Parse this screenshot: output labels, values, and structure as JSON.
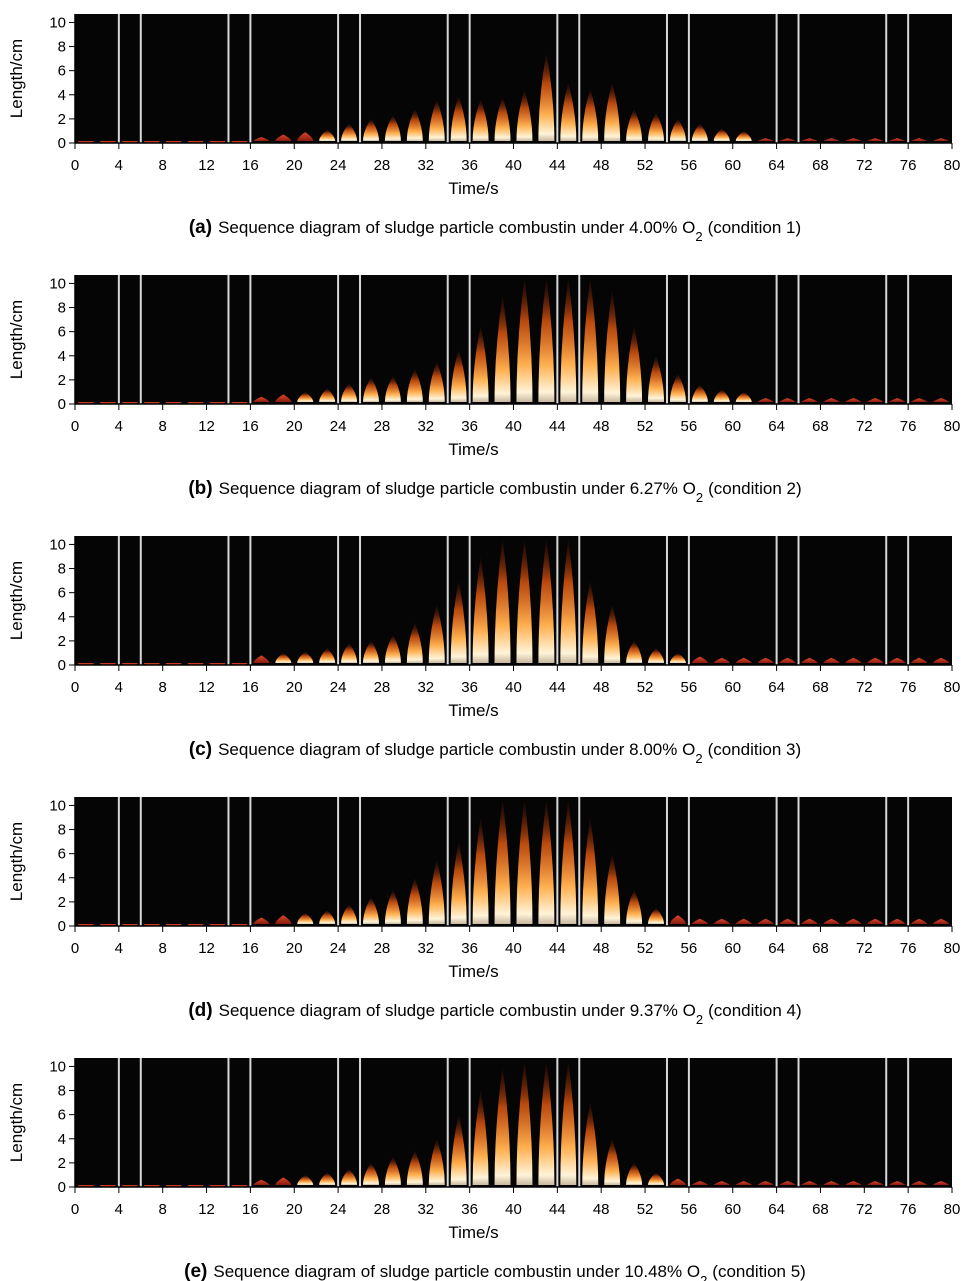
{
  "chart_data": [
    {
      "type": "flame-sequence",
      "label": "(a)",
      "caption": "Sequence diagram of sludge particle combustin under 4.00% O",
      "caption_subscript": "2",
      "caption_suffix": "(condition 1)",
      "xlabel": "Time/s",
      "ylabel": "Length/cm",
      "xlim": [
        0,
        80
      ],
      "ylim": [
        0,
        10.7
      ],
      "xticks": [
        0,
        4,
        8,
        12,
        16,
        20,
        24,
        28,
        32,
        36,
        40,
        44,
        48,
        52,
        56,
        60,
        64,
        68,
        72,
        76,
        80
      ],
      "yticks": [
        0,
        2,
        4,
        6,
        8,
        10
      ],
      "separators": [
        4,
        6,
        14,
        16,
        24,
        26,
        34,
        36,
        44,
        46,
        54,
        56,
        64,
        66,
        74,
        76
      ],
      "x": [
        1,
        3,
        5,
        7,
        9,
        11,
        13,
        15,
        17,
        19,
        21,
        23,
        25,
        27,
        29,
        31,
        33,
        35,
        37,
        39,
        41,
        43,
        45,
        47,
        49,
        51,
        53,
        55,
        57,
        59,
        61,
        63,
        65,
        67,
        69,
        71,
        73,
        75,
        77,
        79
      ],
      "values": [
        0,
        0,
        0,
        0,
        0,
        0,
        0,
        0,
        0.5,
        0.7,
        0.9,
        1.1,
        1.6,
        2.0,
        2.3,
        2.8,
        3.6,
        3.9,
        3.6,
        3.8,
        4.4,
        7.5,
        5.0,
        4.5,
        5.0,
        2.8,
        2.5,
        2.0,
        1.6,
        1.2,
        1.0,
        0.4,
        0.4,
        0.4,
        0.4,
        0.4,
        0.4,
        0.4,
        0.4,
        0.4
      ]
    },
    {
      "type": "flame-sequence",
      "label": "(b)",
      "caption": "Sequence diagram of sludge particle combustin under 6.27% O",
      "caption_subscript": "2",
      "caption_suffix": "(condition 2)",
      "xlabel": "Time/s",
      "ylabel": "Length/cm",
      "xlim": [
        0,
        80
      ],
      "ylim": [
        0,
        10.7
      ],
      "xticks": [
        0,
        4,
        8,
        12,
        16,
        20,
        24,
        28,
        32,
        36,
        40,
        44,
        48,
        52,
        56,
        60,
        64,
        68,
        72,
        76,
        80
      ],
      "yticks": [
        0,
        2,
        4,
        6,
        8,
        10
      ],
      "separators": [
        4,
        6,
        14,
        16,
        24,
        26,
        34,
        36,
        44,
        46,
        54,
        56,
        64,
        66,
        74,
        76
      ],
      "x": [
        1,
        3,
        5,
        7,
        9,
        11,
        13,
        15,
        17,
        19,
        21,
        23,
        25,
        27,
        29,
        31,
        33,
        35,
        37,
        39,
        41,
        43,
        45,
        47,
        49,
        51,
        53,
        55,
        57,
        59,
        61,
        63,
        65,
        67,
        69,
        71,
        73,
        75,
        77,
        79
      ],
      "values": [
        0,
        0,
        0,
        0,
        0,
        0,
        0,
        0,
        0.6,
        0.8,
        1.0,
        1.3,
        1.7,
        2.2,
        2.3,
        2.9,
        3.5,
        4.5,
        6.5,
        9.0,
        10.5,
        10.5,
        10.5,
        10.5,
        9.5,
        6.5,
        4.0,
        2.5,
        1.6,
        1.2,
        1.0,
        0.5,
        0.5,
        0.5,
        0.5,
        0.5,
        0.5,
        0.5,
        0.5,
        0.5
      ]
    },
    {
      "type": "flame-sequence",
      "label": "(c)",
      "caption": "Sequence diagram of sludge particle combustin under 8.00% O",
      "caption_subscript": "2",
      "caption_suffix": "(condition 3)",
      "xlabel": "Time/s",
      "ylabel": "Length/cm",
      "xlim": [
        0,
        80
      ],
      "ylim": [
        0,
        10.7
      ],
      "xticks": [
        0,
        4,
        8,
        12,
        16,
        20,
        24,
        28,
        32,
        36,
        40,
        44,
        48,
        52,
        56,
        60,
        64,
        68,
        72,
        76,
        80
      ],
      "yticks": [
        0,
        2,
        4,
        6,
        8,
        10
      ],
      "separators": [
        4,
        6,
        14,
        16,
        24,
        26,
        34,
        36,
        44,
        46,
        54,
        56,
        64,
        66,
        74,
        76
      ],
      "x": [
        1,
        3,
        5,
        7,
        9,
        11,
        13,
        15,
        17,
        19,
        21,
        23,
        25,
        27,
        29,
        31,
        33,
        35,
        37,
        39,
        41,
        43,
        45,
        47,
        49,
        51,
        53,
        55,
        57,
        59,
        61,
        63,
        65,
        67,
        69,
        71,
        73,
        75,
        77,
        79
      ],
      "values": [
        0,
        0,
        0,
        0,
        0,
        0,
        0,
        0,
        0.8,
        1.0,
        1.1,
        1.4,
        1.8,
        2.0,
        2.5,
        3.5,
        5,
        7,
        9,
        10.5,
        10.5,
        10.5,
        10.5,
        7,
        5,
        2,
        1.4,
        1,
        0.7,
        0.6,
        0.6,
        0.6,
        0.6,
        0.6,
        0.6,
        0.6,
        0.6,
        0.6,
        0.6,
        0.6
      ]
    },
    {
      "type": "flame-sequence",
      "label": "(d)",
      "caption": "Sequence diagram of sludge particle combustin under 9.37% O",
      "caption_subscript": "2",
      "caption_suffix": "(condition 4)",
      "xlabel": "Time/s",
      "ylabel": "Length/cm",
      "xlim": [
        0,
        80
      ],
      "ylim": [
        0,
        10.7
      ],
      "xticks": [
        0,
        4,
        8,
        12,
        16,
        20,
        24,
        28,
        32,
        36,
        40,
        44,
        48,
        52,
        56,
        60,
        64,
        68,
        72,
        76,
        80
      ],
      "yticks": [
        0,
        2,
        4,
        6,
        8,
        10
      ],
      "separators": [
        4,
        6,
        14,
        16,
        24,
        26,
        34,
        36,
        44,
        46,
        54,
        56,
        64,
        66,
        74,
        76
      ],
      "x": [
        1,
        3,
        5,
        7,
        9,
        11,
        13,
        15,
        17,
        19,
        21,
        23,
        25,
        27,
        29,
        31,
        33,
        35,
        37,
        39,
        41,
        43,
        45,
        47,
        49,
        51,
        53,
        55,
        57,
        59,
        61,
        63,
        65,
        67,
        69,
        71,
        73,
        75,
        77,
        79
      ],
      "values": [
        0,
        0,
        0,
        0,
        0,
        0,
        0,
        0,
        0.7,
        0.9,
        1.1,
        1.3,
        1.8,
        2.4,
        3,
        4,
        5.5,
        7,
        9,
        10.5,
        10.5,
        10.5,
        10.5,
        9,
        6,
        3,
        1.5,
        0.9,
        0.6,
        0.6,
        0.6,
        0.6,
        0.6,
        0.6,
        0.6,
        0.6,
        0.6,
        0.6,
        0.6,
        0.6
      ]
    },
    {
      "type": "flame-sequence",
      "label": "(e)",
      "caption": "Sequence diagram of sludge particle combustin under 10.48% O",
      "caption_subscript": "2",
      "caption_suffix": "(condition 5)",
      "xlabel": "Time/s",
      "ylabel": "Length/cm",
      "xlim": [
        0,
        80
      ],
      "ylim": [
        0,
        10.7
      ],
      "xticks": [
        0,
        4,
        8,
        12,
        16,
        20,
        24,
        28,
        32,
        36,
        40,
        44,
        48,
        52,
        56,
        60,
        64,
        68,
        72,
        76,
        80
      ],
      "yticks": [
        0,
        2,
        4,
        6,
        8,
        10
      ],
      "separators": [
        4,
        6,
        14,
        16,
        24,
        26,
        34,
        36,
        44,
        46,
        54,
        56,
        64,
        66,
        74,
        76
      ],
      "x": [
        1,
        3,
        5,
        7,
        9,
        11,
        13,
        15,
        17,
        19,
        21,
        23,
        25,
        27,
        29,
        31,
        33,
        35,
        37,
        39,
        41,
        43,
        45,
        47,
        49,
        51,
        53,
        55,
        57,
        59,
        61,
        63,
        65,
        67,
        69,
        71,
        73,
        75,
        77,
        79
      ],
      "values": [
        0,
        0,
        0,
        0,
        0,
        0,
        0,
        0,
        0.6,
        0.8,
        1.0,
        1.2,
        1.5,
        2,
        2.5,
        3,
        4,
        6,
        8,
        10,
        10.5,
        10.5,
        10.5,
        7,
        4,
        2,
        1.2,
        0.7,
        0.5,
        0.5,
        0.5,
        0.5,
        0.5,
        0.5,
        0.5,
        0.5,
        0.5,
        0.5,
        0.5,
        0.5
      ]
    }
  ]
}
